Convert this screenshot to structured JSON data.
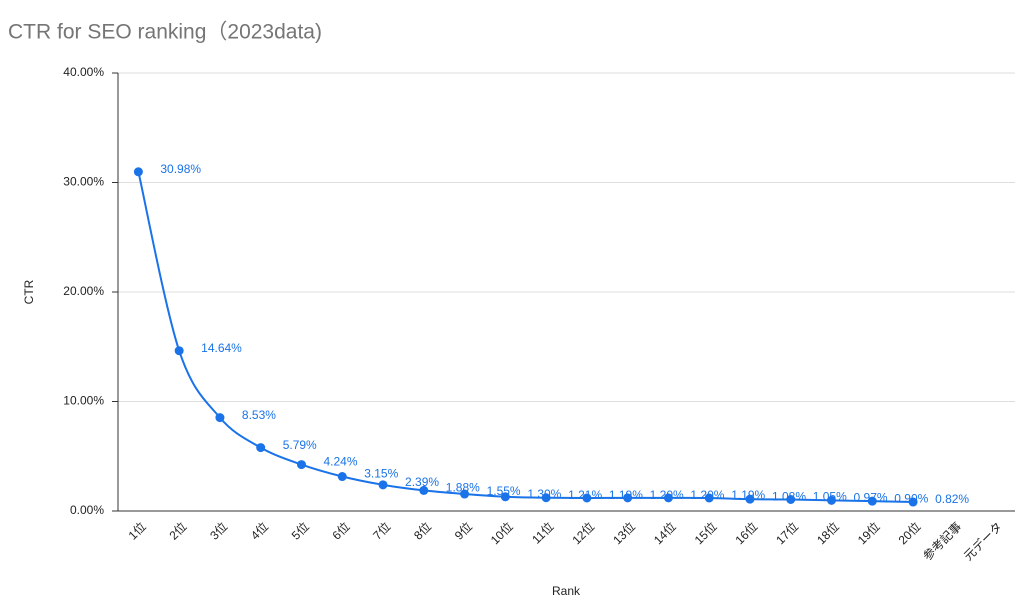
{
  "chart_data": {
    "type": "line",
    "title": "CTR for SEO ranking（2023data)",
    "x_label": "Rank",
    "y_label": "CTR",
    "categories": [
      "1位",
      "2位",
      "3位",
      "4位",
      "5位",
      "6位",
      "7位",
      "8位",
      "9位",
      "10位",
      "11位",
      "12位",
      "13位",
      "14位",
      "15位",
      "16位",
      "17位",
      "18位",
      "19位",
      "20位",
      "参考記事",
      "元データ"
    ],
    "series": [
      {
        "name": "CTR",
        "color": "#1a73e8",
        "values": [
          30.98,
          14.64,
          8.53,
          5.79,
          4.24,
          3.15,
          2.39,
          1.88,
          1.55,
          1.3,
          1.21,
          1.19,
          1.2,
          1.2,
          1.19,
          1.08,
          1.05,
          0.97,
          0.9,
          0.82,
          null,
          null
        ],
        "value_labels": [
          "30.98%",
          "14.64%",
          "8.53%",
          "5.79%",
          "4.24%",
          "3.15%",
          "2.39%",
          "1.88%",
          "1.55%",
          "1.30%",
          "1.21%",
          "1.19%",
          "1.20%",
          "1.20%",
          "1.19%",
          "1.08%",
          "1.05%",
          "0.97%",
          "0.90%",
          "0.82%",
          null,
          null
        ]
      }
    ],
    "ylim": [
      0,
      40
    ],
    "yticks": [
      {
        "value": 0,
        "label": "0.00%"
      },
      {
        "value": 10,
        "label": "10.00%"
      },
      {
        "value": 20,
        "label": "20.00%"
      },
      {
        "value": 30,
        "label": "30.00%"
      },
      {
        "value": 40,
        "label": "40.00%"
      }
    ],
    "grid": true
  }
}
